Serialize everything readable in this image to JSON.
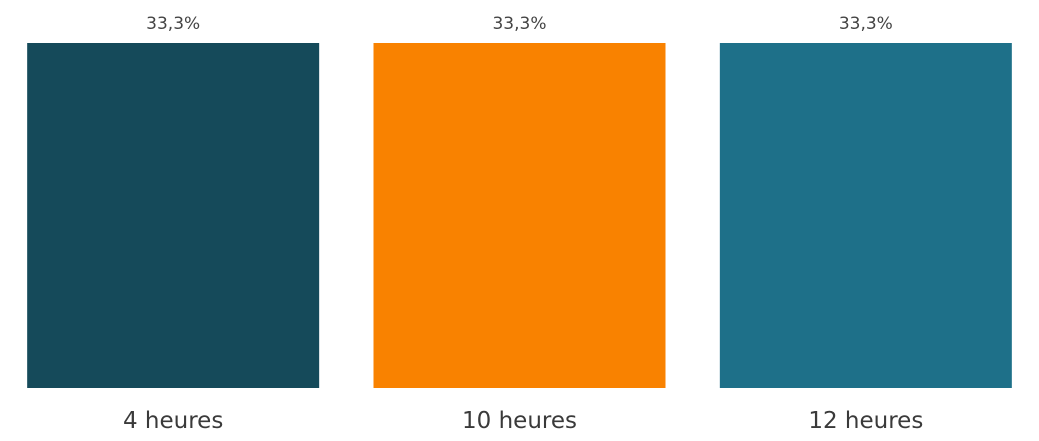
{
  "chart_data": {
    "type": "bar",
    "categories": [
      "4 heures",
      "10 heures",
      "12 heures"
    ],
    "values": [
      33.3,
      33.3,
      33.3
    ],
    "data_labels": [
      "33,3%",
      "33,3%",
      "33,3%"
    ],
    "colors": [
      "#154a5a",
      "#f98200",
      "#1e7089"
    ],
    "ylim": [
      0,
      33.3
    ],
    "unit": "%",
    "grid": false,
    "legend": "none",
    "title": "",
    "xlabel": "",
    "ylabel": ""
  }
}
